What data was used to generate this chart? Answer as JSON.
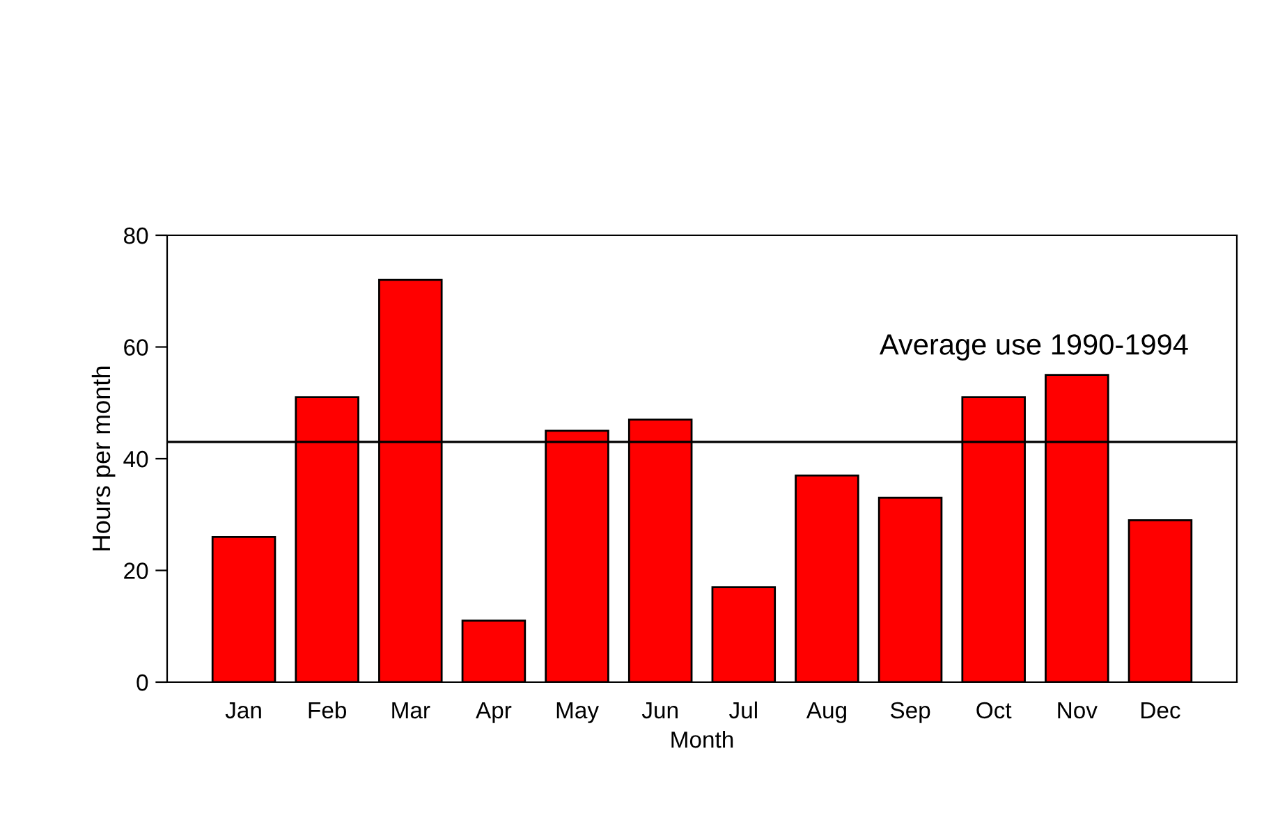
{
  "chart_data": {
    "type": "bar",
    "xlabel": "Month",
    "ylabel": "Hours per month",
    "categories": [
      "Jan",
      "Feb",
      "Mar",
      "Apr",
      "May",
      "Jun",
      "Jul",
      "Aug",
      "Sep",
      "Oct",
      "Nov",
      "Dec"
    ],
    "values": [
      26,
      51,
      72,
      11,
      45,
      47,
      17,
      37,
      33,
      51,
      55,
      29
    ],
    "color": "#ff0000",
    "ylim": [
      0,
      80
    ],
    "yticks": [
      0,
      20,
      40,
      60,
      80
    ],
    "grid": false,
    "ref_lines": [
      {
        "axis": "y",
        "value": 43,
        "label": "Average use 1990-1994",
        "color": "#000000"
      }
    ]
  }
}
